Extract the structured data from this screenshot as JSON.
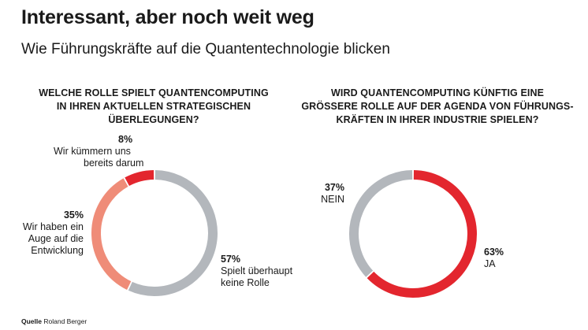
{
  "header": {
    "title": "Interessant, aber noch weit weg",
    "subtitle": "Wie Führungskräfte auf die Quantentechnologie blicken"
  },
  "source": {
    "label": "Quelle",
    "text": "Roland Berger"
  },
  "chart_data": [
    {
      "type": "pie",
      "title_lines": [
        "WELCHE ROLLE SPIELT QUANTENCOMPUTING",
        "IN IHREN AKTUELLEN STRATEGISCHEN",
        "ÜBERLEGUNGEN?"
      ],
      "slices": [
        {
          "value": 57,
          "pct_label": "57%",
          "label_lines": [
            "Spielt überhaupt",
            "keine Rolle"
          ],
          "color": "#b3b7bc"
        },
        {
          "value": 35,
          "pct_label": "35%",
          "label_lines": [
            "Wir haben ein",
            "Auge auf die",
            "Entwicklung"
          ],
          "color": "#ef8c78"
        },
        {
          "value": 8,
          "pct_label": "8%",
          "label_lines": [
            "Wir kümmern uns",
            "bereits darum"
          ],
          "color": "#e3262e"
        }
      ]
    },
    {
      "type": "pie",
      "title_lines": [
        "WIRD QUANTENCOMPUTING KÜNFTIG EINE",
        "GRÖSSERE ROLLE AUF DER AGENDA VON FÜHRUNGS-",
        "KRÄFTEN IN IHRER INDUSTRIE SPIELEN?"
      ],
      "slices": [
        {
          "value": 63,
          "pct_label": "63%",
          "label_lines": [
            "JA"
          ],
          "color": "#e3262e"
        },
        {
          "value": 37,
          "pct_label": "37%",
          "label_lines": [
            "NEIN"
          ],
          "color": "#b3b7bc"
        }
      ]
    }
  ]
}
